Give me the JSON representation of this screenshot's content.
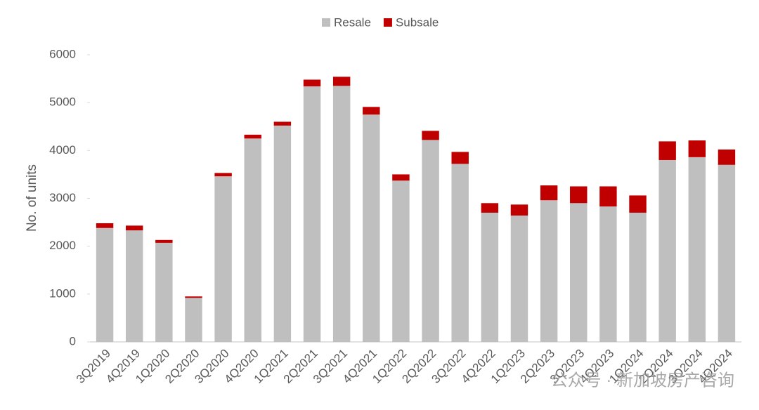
{
  "chart_data": {
    "type": "stacked_bar",
    "y_label": "No. of units",
    "categories": [
      "3Q2019",
      "4Q2019",
      "1Q2020",
      "2Q2020",
      "3Q2020",
      "4Q2020",
      "1Q2021",
      "2Q2021",
      "3Q2021",
      "4Q2021",
      "1Q2022",
      "2Q2022",
      "3Q2022",
      "4Q2022",
      "1Q2023",
      "2Q2023",
      "3Q2023",
      "4Q2023",
      "1Q2024",
      "2Q2024",
      "3Q2024",
      "4Q2024"
    ],
    "series": [
      {
        "name": "Resale",
        "color": "#bfbfbf",
        "values": [
          2380,
          2330,
          2070,
          920,
          3460,
          4250,
          4520,
          5340,
          5350,
          4750,
          3370,
          4220,
          3720,
          2700,
          2640,
          2960,
          2900,
          2830,
          2700,
          3800,
          3860,
          3700
        ]
      },
      {
        "name": "Subsale",
        "color": "#c00000",
        "values": [
          100,
          100,
          60,
          30,
          70,
          80,
          80,
          140,
          190,
          160,
          130,
          190,
          250,
          200,
          230,
          310,
          350,
          420,
          360,
          390,
          350,
          320
        ]
      }
    ],
    "ylim": [
      0,
      6000
    ],
    "yticks": [
      0,
      1000,
      2000,
      3000,
      4000,
      5000,
      6000
    ],
    "watermark": "公众号 · 新加坡房产咨询"
  }
}
